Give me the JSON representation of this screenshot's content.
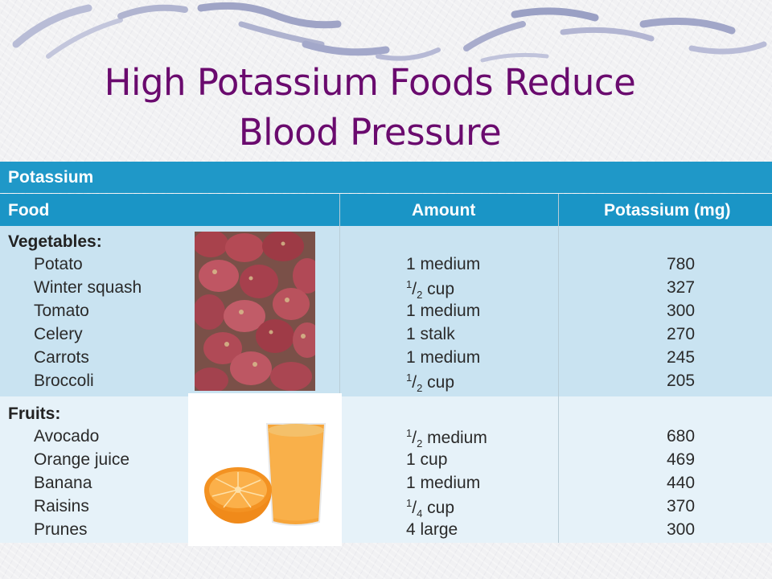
{
  "title": {
    "line1": "High Potassium Foods Reduce",
    "line2": "Blood Pressure"
  },
  "table": {
    "caption": "Potassium",
    "headers": {
      "food": "Food",
      "amount": "Amount",
      "potassium": "Potassium (mg)"
    },
    "sections": [
      {
        "name": "Vegetables:",
        "rows": [
          {
            "food": "Potato",
            "amount_num": "",
            "amount": "1 medium",
            "mg": "780"
          },
          {
            "food": "Winter squash",
            "amount_num": "1",
            "amount_den": "2",
            "amount": "cup",
            "mg": "327"
          },
          {
            "food": "Tomato",
            "amount_num": "",
            "amount": "1 medium",
            "mg": "300"
          },
          {
            "food": "Celery",
            "amount_num": "",
            "amount": "1 stalk",
            "mg": "270"
          },
          {
            "food": "Carrots",
            "amount_num": "",
            "amount": "1 medium",
            "mg": "245"
          },
          {
            "food": "Broccoli",
            "amount_num": "1",
            "amount_den": "2",
            "amount": "cup",
            "mg": "205"
          }
        ]
      },
      {
        "name": "Fruits:",
        "rows": [
          {
            "food": "Avocado",
            "amount_num": "1",
            "amount_den": "2",
            "amount": "medium",
            "mg": "680"
          },
          {
            "food": "Orange juice",
            "amount_num": "",
            "amount": "1 cup",
            "mg": "469"
          },
          {
            "food": "Banana",
            "amount_num": "",
            "amount": "1 medium",
            "mg": "440"
          },
          {
            "food": "Raisins",
            "amount_num": "1",
            "amount_den": "4",
            "amount": "cup",
            "mg": "370"
          },
          {
            "food": "Prunes",
            "amount_num": "",
            "amount": "4 large",
            "mg": "300"
          }
        ]
      }
    ]
  },
  "colors": {
    "title": "#6a0a6e",
    "header": "#1f98c8",
    "vegetables_bg": "#c9e3f1",
    "fruits_bg": "#e6f2f9"
  },
  "images": {
    "potatoes": "red-potatoes-photo",
    "orange": "orange-and-juice-photo"
  }
}
